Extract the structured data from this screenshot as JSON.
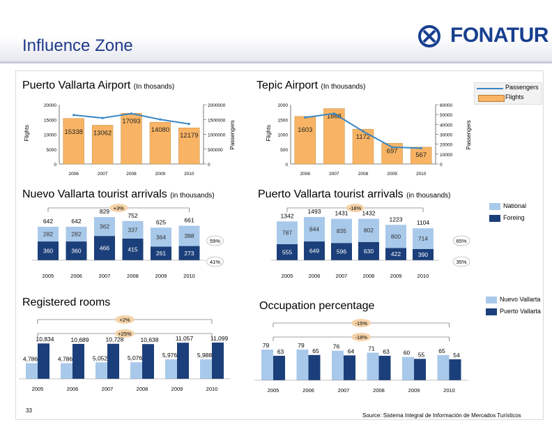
{
  "header": {
    "title": "Influence Zone",
    "logo_text": "FONATUR"
  },
  "colors": {
    "bar_orange": "#f8b464",
    "line_blue": "#3a86c4",
    "navy": "#1b3f7a",
    "nat_blue": "#a9c9ea",
    "title_blue": "#1e3a8a"
  },
  "pva_airport": {
    "title": "Puerto Vallarta Airport",
    "subtitle": "(In thosands)",
    "left_axis_label": "Flights",
    "right_axis_label": "Passengers"
  },
  "tepic_airport": {
    "title": "Tepic  Airport",
    "subtitle": "(In thousands)",
    "left_axis_label": "Flights",
    "right_axis_label": "Passengers"
  },
  "airport_legend": {
    "passengers": "Passengers",
    "flights": "Flights"
  },
  "nv_arrivals": {
    "title": "Nuevo Vallarta tourist arrivals",
    "subtitle": "(in thousands)",
    "growth": "+3%",
    "pct_national": "59%",
    "pct_foreign": "41%"
  },
  "pv_arrivals": {
    "title": "Puerto Vallarta tourist arrivals",
    "subtitle": "(in thousands)",
    "growth": "-18%",
    "pct_national": "65%",
    "pct_foreign": "35%"
  },
  "arrivals_legend": {
    "national": "National",
    "foreign": "Foreing"
  },
  "rooms": {
    "title": "Registered rooms",
    "growth_outer": "+2%",
    "growth_inner": "+25%"
  },
  "occupation": {
    "title": "Occupation percentage",
    "growth_outer": "-15%",
    "growth_inner": "-18%"
  },
  "rooms_legend": {
    "nv": "Nuevo Vallarta",
    "pv": "Puerto Vallarta"
  },
  "footer": {
    "source": "Source: Sistema Integral de Información de Mercados Turísticos",
    "page": "33"
  },
  "chart_data": [
    {
      "id": "pva_airport",
      "type": "bar",
      "categories": [
        "2006",
        "2007",
        "2008",
        "2009",
        "2010"
      ],
      "ylim_left": [
        0,
        20000
      ],
      "ylim_right": [
        0,
        2000000
      ],
      "left_ticks": [
        "0",
        "5000",
        "10000",
        "15000",
        "20000"
      ],
      "right_ticks": [
        "0",
        "500000",
        "1000000",
        "1500000",
        "2000000"
      ],
      "series": [
        {
          "name": "Flights",
          "type": "bar",
          "values": [
            15338,
            13062,
            17093,
            14080,
            12179
          ]
        },
        {
          "name": "Passengers",
          "type": "line",
          "values": [
            1650000,
            1550000,
            1700000,
            1500000,
            1350000
          ]
        }
      ],
      "data_labels": [
        "15338",
        "13062",
        "17093",
        "14080",
        "12179"
      ]
    },
    {
      "id": "tepic_airport",
      "type": "bar",
      "categories": [
        "2006",
        "2007",
        "2008",
        "2009",
        "2010"
      ],
      "ylim_left": [
        0,
        2000
      ],
      "ylim_right": [
        0,
        60000
      ],
      "left_ticks": [
        "0",
        "500",
        "1000",
        "1500",
        "2000"
      ],
      "right_ticks": [
        "0",
        "10000",
        "20000",
        "30000",
        "40000",
        "50000",
        "60000"
      ],
      "series": [
        {
          "name": "Flights",
          "type": "bar",
          "values": [
            1603,
            1868,
            1172,
            697,
            567
          ]
        },
        {
          "name": "Passengers",
          "type": "line",
          "values": [
            47000,
            51000,
            33000,
            17000,
            16000
          ]
        }
      ],
      "data_labels": [
        "1603",
        "1868",
        "1172",
        "697",
        "567"
      ]
    },
    {
      "id": "nv_arrivals",
      "type": "bar",
      "categories": [
        "2005",
        "2006",
        "2007",
        "2008",
        "2009",
        "2010"
      ],
      "series": [
        {
          "name": "National",
          "values": [
            282,
            282,
            362,
            337,
            364,
            388
          ]
        },
        {
          "name": "Foreing",
          "values": [
            360,
            360,
            466,
            415,
            261,
            273
          ]
        }
      ],
      "totals": [
        642,
        642,
        829,
        752,
        625,
        661
      ],
      "national_labels": [
        "282",
        "282",
        "362",
        "337",
        "364",
        "388"
      ],
      "foreign_labels": [
        "360",
        "360",
        "466",
        "415",
        "261",
        "273"
      ],
      "total_labels": [
        "642",
        "642",
        "829",
        "752",
        "625",
        "661"
      ]
    },
    {
      "id": "pv_arrivals",
      "type": "bar",
      "categories": [
        "2005",
        "2006",
        "2007",
        "2008",
        "2009",
        "2010"
      ],
      "series": [
        {
          "name": "National",
          "values": [
            787,
            844,
            835,
            802,
            800,
            714
          ]
        },
        {
          "name": "Foreing",
          "values": [
            555,
            649,
            596,
            630,
            422,
            390
          ]
        }
      ],
      "totals": [
        1342,
        1493,
        1431,
        1432,
        1223,
        1104
      ],
      "national_labels": [
        "787",
        "844",
        "835",
        "802",
        "800",
        "714"
      ],
      "foreign_labels": [
        "555",
        "649",
        "596",
        "630",
        "422",
        "390"
      ],
      "total_labels": [
        "1342",
        "1493",
        "1431",
        "1432",
        "1223",
        "1104"
      ]
    },
    {
      "id": "rooms",
      "type": "bar",
      "categories": [
        "2005",
        "2006",
        "2007",
        "2008",
        "2009",
        "2010"
      ],
      "series": [
        {
          "name": "Nuevo Vallarta",
          "values": [
            4786,
            4786,
            5052,
            5076,
            5976,
            5988
          ]
        },
        {
          "name": "Puerto Vallarta",
          "values": [
            10834,
            10689,
            10728,
            10638,
            11057,
            11099
          ]
        }
      ],
      "nv_labels": [
        "4,786",
        "4,786",
        "5,052",
        "5,076",
        "5,976",
        "5,988"
      ],
      "pv_labels": [
        "10,834",
        "10,689",
        "10,728",
        "10,638",
        "11,057",
        "11,099"
      ]
    },
    {
      "id": "occupation",
      "type": "bar",
      "categories": [
        "2005",
        "2006",
        "2007",
        "2008",
        "2009",
        "2010"
      ],
      "series": [
        {
          "name": "Nuevo Vallarta",
          "values": [
            79,
            79,
            76,
            71,
            60,
            65
          ]
        },
        {
          "name": "Puerto Vallarta",
          "values": [
            63,
            65,
            64,
            63,
            55,
            54
          ]
        }
      ],
      "nv_labels": [
        "79",
        "79",
        "76",
        "71",
        "60",
        "65"
      ],
      "pv_labels": [
        "63",
        "65",
        "64",
        "63",
        "55",
        "54"
      ]
    }
  ]
}
